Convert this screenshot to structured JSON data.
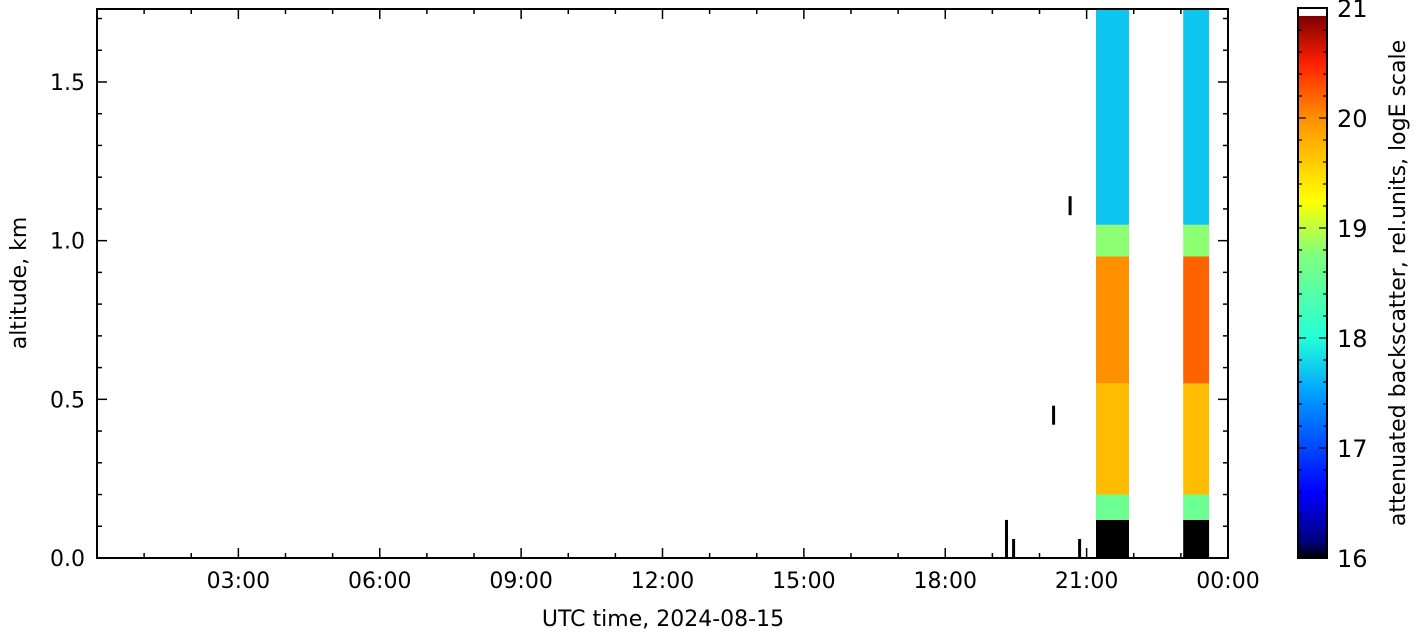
{
  "chart_data": {
    "type": "heatmap",
    "title": "",
    "xlabel": "UTC time,  2024-08-15",
    "ylabel": "altitude, km",
    "x_tick_labels": [
      "03:00",
      "06:00",
      "09:00",
      "12:00",
      "15:00",
      "18:00",
      "21:00",
      "00:00"
    ],
    "x_tick_hours": [
      3,
      6,
      9,
      12,
      15,
      18,
      21,
      24
    ],
    "xlim_hours": [
      0,
      24
    ],
    "y_tick_labels": [
      "0.0",
      "0.5",
      "1.0",
      "1.5"
    ],
    "y_tick_values": [
      0.0,
      0.5,
      1.0,
      1.5
    ],
    "ylim_km": [
      0,
      1.73
    ],
    "colorbar": {
      "label": "attenuated backscatter, rel.units, logE scale",
      "tick_labels": [
        "16",
        "17",
        "18",
        "19",
        "20",
        "21"
      ],
      "tick_values": [
        16,
        17,
        18,
        19,
        20,
        21
      ],
      "range": [
        16,
        21
      ],
      "colormap": "jet"
    },
    "series": [
      {
        "time_start_h": 21.2,
        "time_end_h": 21.9,
        "layers": [
          {
            "alt_start_km": 0.0,
            "alt_end_km": 0.12,
            "value": 16.0
          },
          {
            "alt_start_km": 0.12,
            "alt_end_km": 0.2,
            "value": 18.6
          },
          {
            "alt_start_km": 0.2,
            "alt_end_km": 0.55,
            "value": 19.7
          },
          {
            "alt_start_km": 0.55,
            "alt_end_km": 0.95,
            "value": 20.0
          },
          {
            "alt_start_km": 0.95,
            "alt_end_km": 1.05,
            "value": 18.8
          },
          {
            "alt_start_km": 1.05,
            "alt_end_km": 1.73,
            "value": 17.7
          }
        ]
      },
      {
        "time_start_h": 23.05,
        "time_end_h": 23.6,
        "layers": [
          {
            "alt_start_km": 0.0,
            "alt_end_km": 0.12,
            "value": 16.0
          },
          {
            "alt_start_km": 0.12,
            "alt_end_km": 0.2,
            "value": 18.6
          },
          {
            "alt_start_km": 0.2,
            "alt_end_km": 0.55,
            "value": 19.7
          },
          {
            "alt_start_km": 0.55,
            "alt_end_km": 0.95,
            "value": 20.2
          },
          {
            "alt_start_km": 0.95,
            "alt_end_km": 1.05,
            "value": 18.8
          },
          {
            "alt_start_km": 1.05,
            "alt_end_km": 1.73,
            "value": 17.7
          }
        ]
      }
    ],
    "sparse_points": [
      {
        "time_h": 19.3,
        "alt_start_km": 0.0,
        "alt_end_km": 0.12,
        "value": 16.0
      },
      {
        "time_h": 19.45,
        "alt_start_km": 0.0,
        "alt_end_km": 0.06,
        "value": 16.0
      },
      {
        "time_h": 20.3,
        "alt_start_km": 0.42,
        "alt_end_km": 0.48,
        "value": 16.0
      },
      {
        "time_h": 20.65,
        "alt_start_km": 1.08,
        "alt_end_km": 1.14,
        "value": 16.0
      },
      {
        "time_h": 20.85,
        "alt_start_km": 0.0,
        "alt_end_km": 0.06,
        "value": 16.0
      }
    ],
    "grid": false,
    "legend": "none"
  }
}
